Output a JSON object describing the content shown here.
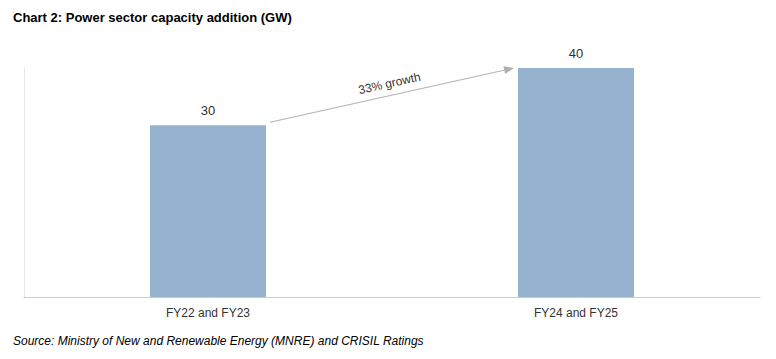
{
  "chart_data": {
    "type": "bar",
    "title": "Chart 2: Power sector capacity addition (GW)",
    "source": "Source: Ministry of New and Renewable Energy (MNRE) and CRISIL Ratings",
    "categories": [
      "FY22 and FY23",
      "FY24 and FY25"
    ],
    "values": [
      30,
      40
    ],
    "color": "#95b3cf",
    "ylim": [
      0,
      40
    ],
    "grid": false,
    "data_labels": true,
    "tick_labels": "x",
    "annotations": [
      "33% growth"
    ]
  }
}
